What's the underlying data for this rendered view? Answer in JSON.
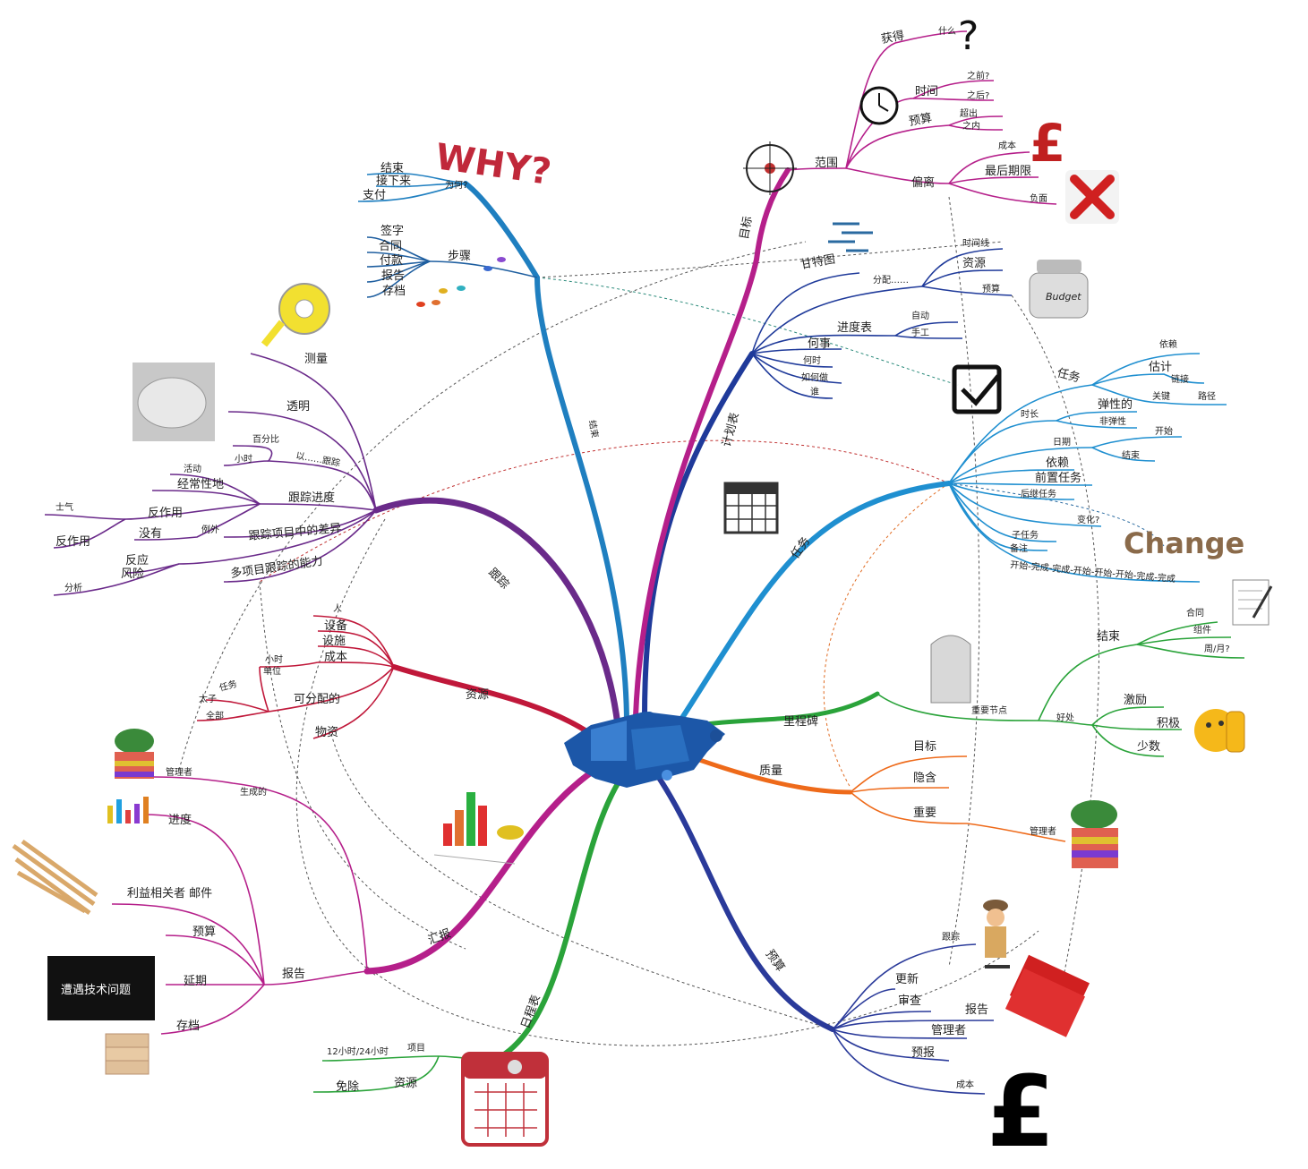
{
  "center": {
    "label": ""
  },
  "branches": [
    {
      "id": "why",
      "label": "为何?",
      "color": "#1f7fc0",
      "items": [
        "结束",
        "接下来",
        "支付"
      ]
    },
    {
      "id": "steps",
      "label": "步骤",
      "color": "#1f5fa0",
      "items": [
        "签字",
        "合同",
        "付款",
        "报告",
        "存档"
      ]
    },
    {
      "id": "track",
      "label": "跟踪",
      "color": "#6a2a8a",
      "items": [
        "测量",
        "透明",
        "百分比",
        "以……跟踪",
        "小时",
        "跟踪进度",
        "活动",
        "经常性地",
        "士气",
        "反作用",
        "例外",
        "没有",
        "反作用",
        "跟踪项目中的差异",
        "反应",
        "风险",
        "分析",
        "多项目跟踪的能力"
      ]
    },
    {
      "id": "resources",
      "label": "资源",
      "color": "#c0183a",
      "items": [
        "人",
        "设备",
        "设施",
        "成本",
        "小时",
        "单位",
        "任务",
        "太子",
        "全部",
        "可分配的",
        "物资"
      ]
    },
    {
      "id": "report",
      "label": "汇报",
      "color": "#b51f8a",
      "items": [
        "生成的",
        "管理者",
        "进度",
        "利益相关者 邮件",
        "预算",
        "延期",
        "存档",
        "报告"
      ]
    },
    {
      "id": "schedule",
      "label": "日程表",
      "color": "#2aa33a",
      "items": [
        "项目",
        "12小时/24小时",
        "资源",
        "免除"
      ]
    },
    {
      "id": "budget",
      "label": "预算",
      "color": "#2a3a9a",
      "items": [
        "跟踪",
        "更新",
        "审查",
        "报告",
        "管理者",
        "预报",
        "成本"
      ]
    },
    {
      "id": "quality",
      "label": "质量",
      "color": "#ee6a1a",
      "items": [
        "目标",
        "隐含",
        "重要",
        "管理者"
      ]
    },
    {
      "id": "milestone",
      "label": "里程碑",
      "color": "#2aa33a",
      "items": [
        "重要节点",
        "结束",
        "合同",
        "组件",
        "周/月?",
        "好处",
        "激励",
        "积极",
        "少数"
      ]
    },
    {
      "id": "tasks",
      "label": "任务",
      "color": "#1f8fd0",
      "items": [
        "任务",
        "依赖",
        "估计",
        "链接",
        "关键",
        "路径",
        "时长",
        "弹性的",
        "非弹性",
        "日期",
        "开始",
        "结束",
        "依赖",
        "前置任务",
        "后继任务",
        "变化?",
        "子任务",
        "备注",
        "开始-完成-完成-开始-开始-开始-完成-完成"
      ]
    },
    {
      "id": "plan",
      "label": "计划表",
      "color": "#1f3a9a",
      "items": [
        "甘特图",
        "分配……",
        "时间线",
        "资源",
        "预算",
        "进度表",
        "自动",
        "手工",
        "何事",
        "何时",
        "如何做",
        "谁"
      ]
    },
    {
      "id": "goal",
      "label": "目标",
      "color": "#b51f8a",
      "items": [
        "范围",
        "获得",
        "什么",
        "时间",
        "之前?",
        "之后?",
        "预算",
        "超出",
        "之内",
        "偏离",
        "成本",
        "最后期限",
        "负面"
      ]
    }
  ],
  "pictures": {
    "why_text": "WHY?",
    "budget_jar": "Budget",
    "change_text": "Change",
    "dark_note": "遭遇技术问题",
    "currency_glyph": "£",
    "question_glyph": "?"
  }
}
